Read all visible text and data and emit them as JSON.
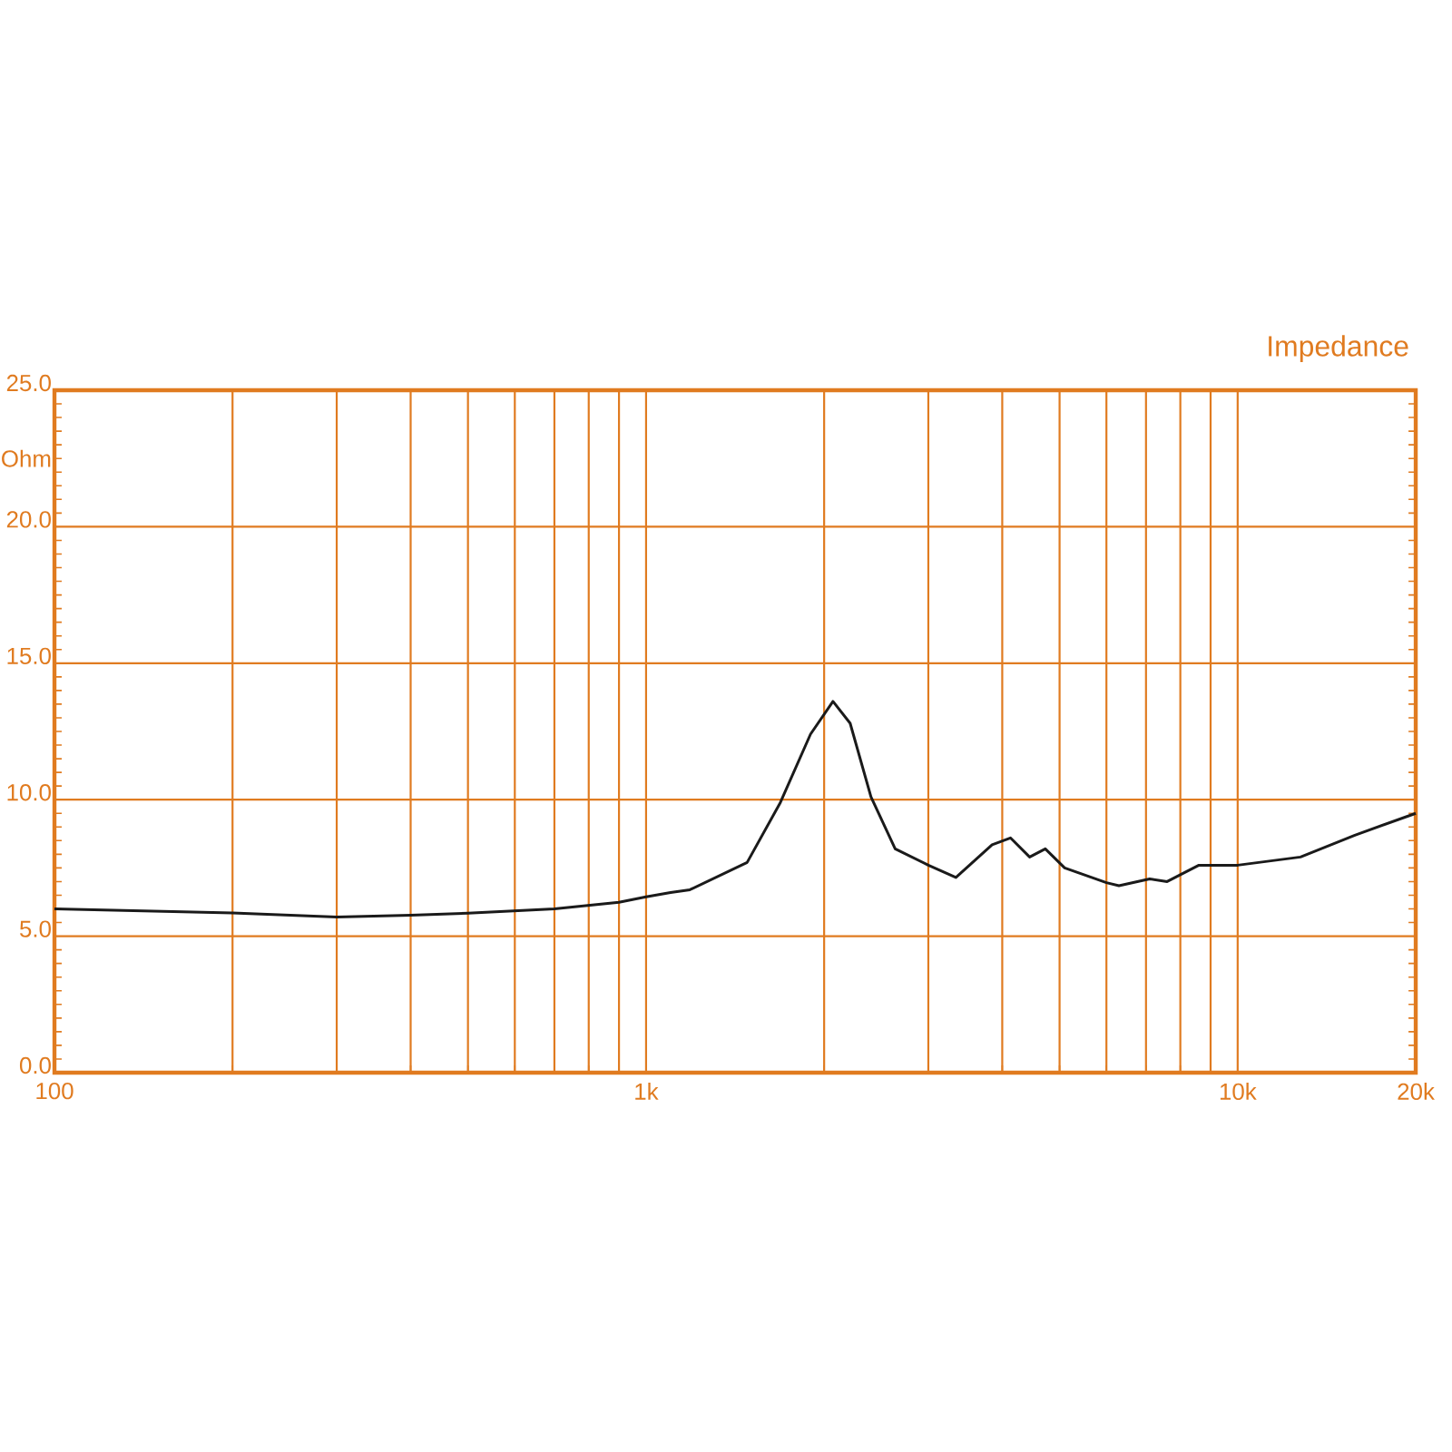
{
  "chart_data": {
    "type": "line",
    "title": "Impedance",
    "ylabel": "Ohm",
    "log": "x",
    "grid": true,
    "marker": "none",
    "line_style": "solid",
    "xlim": [
      100,
      20000
    ],
    "ylim": [
      0,
      25
    ],
    "xticks": [
      100,
      {
        "value": 1000,
        "label": "1k"
      },
      {
        "value": 10000,
        "label": "10k"
      },
      {
        "value": 20000,
        "label": "20k"
      }
    ],
    "yticks": [
      {
        "value": 0,
        "label": "0.0"
      },
      {
        "value": 5,
        "label": "5.0"
      },
      {
        "value": 10,
        "label": "10.0"
      },
      {
        "value": 15,
        "label": "15.0"
      },
      {
        "value": 20,
        "label": "20.0"
      },
      {
        "value": 25,
        "label": "25.0"
      }
    ],
    "series": [
      {
        "color": "#1a1a1a",
        "x": [
          100,
          200,
          300,
          400,
          500,
          700,
          900,
          1000,
          1100,
          1186,
          1482,
          1687,
          1897,
          2070,
          2213,
          2400,
          2637,
          3000,
          3340,
          3846,
          4130,
          4450,
          4730,
          5100,
          6000,
          6300,
          7100,
          7600,
          8600,
          10000,
          12770,
          15780,
          20000
        ],
        "values": [
          6.0,
          5.85,
          5.7,
          5.77,
          5.84,
          6.0,
          6.24,
          6.44,
          6.6,
          6.7,
          7.7,
          9.9,
          12.4,
          13.6,
          12.8,
          10.1,
          8.2,
          7.6,
          7.15,
          8.35,
          8.6,
          7.9,
          8.2,
          7.5,
          6.96,
          6.85,
          7.1,
          7.0,
          7.6,
          7.6,
          7.9,
          8.7,
          9.5
        ]
      }
    ]
  }
}
